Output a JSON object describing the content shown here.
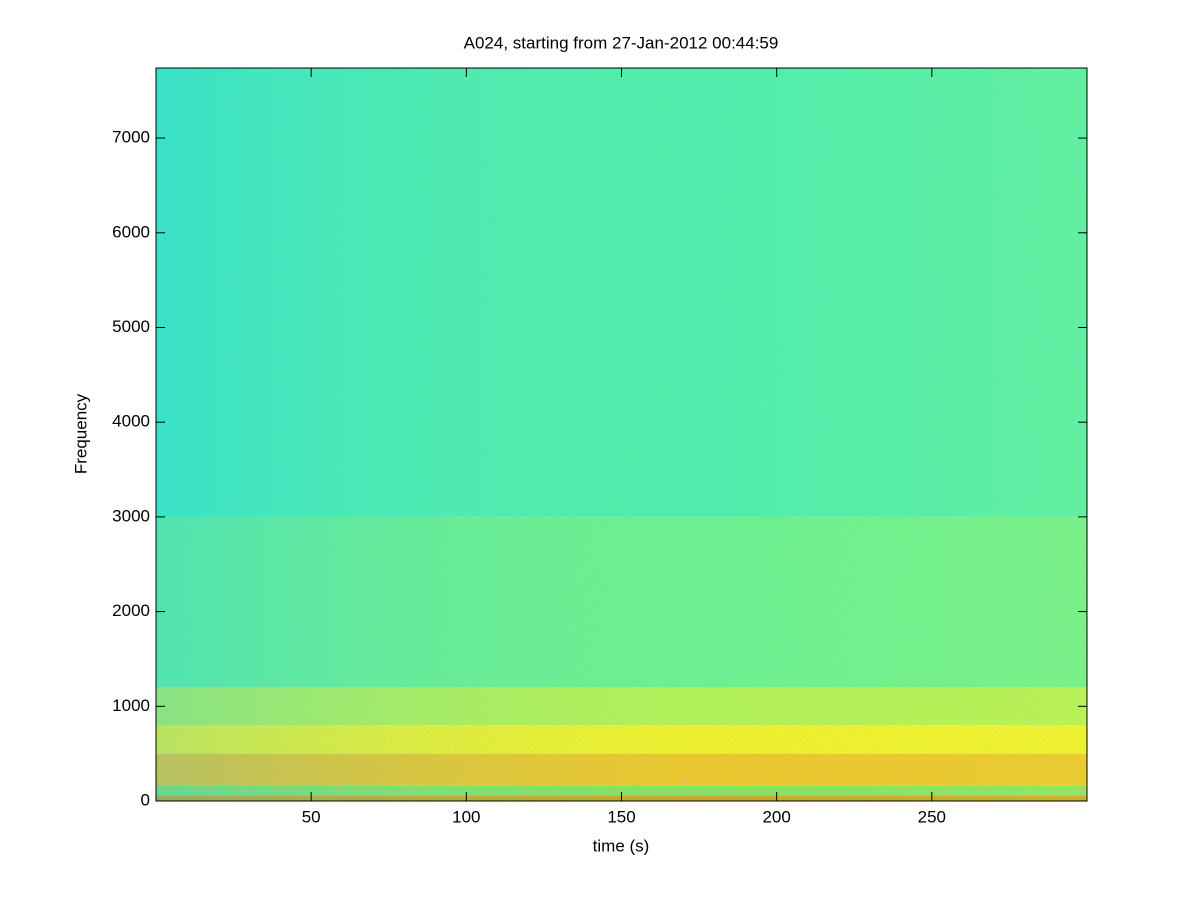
{
  "chart_data": {
    "type": "spectrogram",
    "title": "A024, starting from 27-Jan-2012 00:44:59",
    "x_label": "time (s)",
    "y_label": "Frequency",
    "xlim": [
      0,
      300
    ],
    "ylim": [
      0,
      7740
    ],
    "xticks": [
      50,
      100,
      150,
      200,
      250
    ],
    "yticks": [
      0,
      1000,
      2000,
      3000,
      4000,
      5000,
      6000,
      7000
    ],
    "bands": [
      {
        "from": 0,
        "to": 60,
        "color": "#c8a020"
      },
      {
        "from": 60,
        "to": 160,
        "color": "#80e060"
      },
      {
        "from": 160,
        "to": 500,
        "color": "#f0c020"
      },
      {
        "from": 500,
        "to": 800,
        "color": "#f4f020"
      },
      {
        "from": 800,
        "to": 1200,
        "color": "#b0f050"
      },
      {
        "from": 1200,
        "to": 3000,
        "color": "#60f090"
      },
      {
        "from": 3000,
        "to": 7740,
        "color": "#40eeb0"
      }
    ]
  }
}
